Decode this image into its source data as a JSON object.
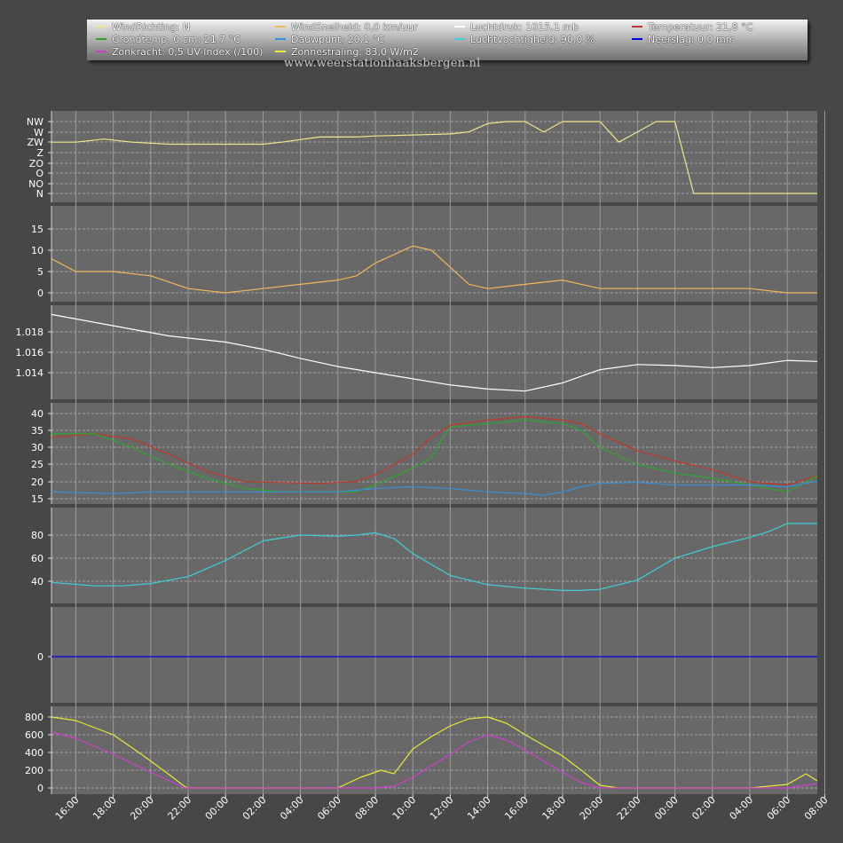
{
  "watermark": "www.weerstationhaaksbergen.nl",
  "legend": [
    {
      "label": "WindRichting: N",
      "color": "#f0e68c"
    },
    {
      "label": "WindSnelheid: 0,0 km/uur",
      "color": "#f4b55c"
    },
    {
      "label": "Luchtdruk: 1015,1 mb",
      "color": "#ffffff"
    },
    {
      "label": "Temperatuur: 21,8 °C",
      "color": "#c0392b"
    },
    {
      "label": "Grondtemp. 0 cm: 21,7 °C",
      "color": "#2ea52e"
    },
    {
      "label": "Dauwpunt: 20,1 °C",
      "color": "#3a8fd8"
    },
    {
      "label": "Luchtvochtigheid: 90,0 %",
      "color": "#3fd0d8"
    },
    {
      "label": "Neerslag: 0,0 mm",
      "color": "#0000e0"
    },
    {
      "label": "Zonkracht: 0,5 UV-Index (/100)",
      "color": "#d040d0"
    },
    {
      "label": "Zonnestraling: 83,0 W/m2",
      "color": "#e8e83a"
    }
  ],
  "chart_data": {
    "type": "line",
    "x_labels": [
      "16:00",
      "18:00",
      "20:00",
      "22:00",
      "00:00",
      "02:00",
      "04:00",
      "06:00",
      "08:00",
      "10:00",
      "12:00",
      "14:00",
      "16:00",
      "18:00",
      "20:00",
      "22:00",
      "00:00",
      "02:00",
      "04:00",
      "06:00",
      "08:00"
    ],
    "x_range_hours": [
      -1.3,
      39.6
    ],
    "panels": [
      {
        "name": "wind-direction",
        "y_tick_labels": [
          "NW",
          "W",
          "ZW",
          "Z",
          "ZO",
          "O",
          "NO",
          "N"
        ],
        "series": [
          {
            "legend_index": 0,
            "color": "#f0e68c",
            "x": [
              -1.3,
              0,
              1.5,
              3,
              5,
              6,
              8,
              10,
              11,
              13,
              15,
              16,
              18,
              20,
              21,
              22,
              23,
              24,
              25,
              26,
              27,
              28,
              29,
              30,
              31,
              32,
              33,
              34,
              35,
              36,
              37,
              38,
              39.6
            ],
            "values": [
              5,
              5,
              5.3,
              5,
              4.8,
              4.8,
              4.8,
              4.8,
              5,
              5.5,
              5.5,
              5.6,
              5.7,
              5.8,
              6,
              6.8,
              7,
              7,
              6,
              7,
              7,
              7,
              5,
              6,
              7,
              7,
              0,
              0,
              0,
              0,
              0,
              0,
              0
            ]
          }
        ]
      },
      {
        "name": "wind-speed",
        "y_tick_labels": [
          "15",
          "10",
          "5",
          "0"
        ],
        "series": [
          {
            "legend_index": 1,
            "color": "#f4b55c",
            "x": [
              -1.3,
              0,
              2,
              4,
              6,
              8,
              10,
              12,
              14,
              15,
              16,
              17,
              18,
              19,
              20,
              21,
              22,
              24,
              26,
              28,
              30,
              32,
              34,
              36,
              38,
              39.6
            ],
            "values": [
              8,
              5,
              5,
              4,
              1,
              0,
              1,
              2,
              3,
              4,
              7,
              9,
              11,
              10,
              6,
              2,
              1,
              2,
              3,
              1,
              1,
              1,
              1,
              1,
              0,
              0
            ]
          }
        ]
      },
      {
        "name": "pressure",
        "y_tick_labels": [
          "1.018",
          "1.016",
          "1.014"
        ],
        "series": [
          {
            "legend_index": 2,
            "color": "#ffffff",
            "x": [
              -1.3,
              2,
              5,
              8,
              10,
              12,
              14,
              16,
              18,
              20,
              22,
              24,
              26,
              28,
              30,
              32,
              34,
              36,
              38,
              39.6
            ],
            "values": [
              1019.7,
              1018.6,
              1017.6,
              1017.0,
              1016.3,
              1015.4,
              1014.6,
              1014.0,
              1013.4,
              1012.8,
              1012.4,
              1012.2,
              1013.0,
              1014.3,
              1014.8,
              1014.7,
              1014.5,
              1014.7,
              1015.2,
              1015.1
            ]
          }
        ]
      },
      {
        "name": "temperatures",
        "y_tick_labels": [
          "40",
          "35",
          "30",
          "25",
          "20",
          "15"
        ],
        "series": [
          {
            "legend_index": 3,
            "color": "#c0392b",
            "x": [
              -1.3,
              1,
              3,
              5,
              7,
              9,
              11,
              13,
              15,
              16,
              18,
              19,
              20,
              22,
              24,
              26,
              27,
              28,
              30,
              32,
              34,
              36,
              38,
              39.6
            ],
            "values": [
              33,
              34,
              32.5,
              28,
              23,
              20,
              19.7,
              19.5,
              20,
              22,
              28,
              33,
              36.5,
              38,
              39,
              38,
              37,
              34,
              29,
              26,
              23.5,
              20,
              19,
              21.8
            ]
          },
          {
            "legend_index": 4,
            "color": "#2ea52e",
            "x": [
              -1.3,
              1,
              3,
              5,
              7,
              9,
              11,
              13,
              15,
              16,
              18,
              19,
              19.5,
              20,
              22,
              24,
              26,
              27,
              28,
              30,
              32,
              34,
              36,
              38,
              39.6
            ],
            "values": [
              34,
              34,
              30,
              25,
              21,
              18,
              17,
              17,
              17,
              19,
              24,
              27,
              32,
              36,
              37,
              38,
              37,
              35,
              30,
              25,
              22.5,
              21,
              19,
              17,
              21.7
            ]
          },
          {
            "legend_index": 5,
            "color": "#3a8fd8",
            "x": [
              -1.3,
              2,
              4,
              6,
              8,
              10,
              12,
              14,
              16,
              18,
              20,
              22,
              24,
              25,
              26,
              27,
              28,
              30,
              32,
              34,
              36,
              38,
              39.6
            ],
            "values": [
              17,
              16.5,
              17,
              17,
              17,
              17,
              17,
              17,
              18,
              18.5,
              18,
              17,
              16.5,
              16,
              17,
              18.5,
              19.5,
              19.8,
              19,
              19,
              19,
              18.5,
              20.1
            ]
          }
        ]
      },
      {
        "name": "humidity",
        "y_tick_labels": [
          "80",
          "60",
          "40"
        ],
        "series": [
          {
            "legend_index": 6,
            "color": "#3fd0d8",
            "x": [
              -1.3,
              1,
              2.5,
              4,
              6,
              8,
              10,
              12,
              14,
              15,
              16,
              17,
              18,
              20,
              22,
              24,
              26,
              27,
              28,
              30,
              32,
              34,
              36,
              37,
              38,
              39.6
            ],
            "values": [
              39,
              36,
              36,
              38,
              44,
              58,
              75,
              80,
              79,
              80,
              82,
              77,
              64,
              45,
              37,
              34,
              32,
              32,
              33,
              41,
              60,
              70,
              78,
              83,
              90,
              90
            ]
          }
        ]
      },
      {
        "name": "precipitation",
        "y_tick_labels": [
          "0"
        ],
        "series": [
          {
            "legend_index": 7,
            "color": "#0000e0",
            "x": [
              -1.3,
              39.6
            ],
            "values": [
              0,
              0
            ]
          }
        ]
      },
      {
        "name": "radiation",
        "y_tick_labels": [
          "800",
          "600",
          "400",
          "200",
          "0"
        ],
        "series": [
          {
            "legend_index": 9,
            "color": "#e8e83a",
            "x": [
              -1.3,
              0,
              2,
              3.5,
              4.8,
              5.8,
              6,
              8,
              10,
              12,
              14,
              15.2,
              16.3,
              17,
              18,
              19,
              20,
              21,
              22,
              23,
              24,
              25,
              26,
              27,
              28,
              29,
              30,
              32,
              34,
              36,
              38,
              39,
              39.6
            ],
            "values": [
              800,
              760,
              600,
              380,
              180,
              20,
              0,
              0,
              0,
              0,
              0,
              120,
              200,
              160,
              440,
              580,
              700,
              780,
              800,
              730,
              600,
              480,
              360,
              200,
              30,
              0,
              0,
              0,
              0,
              0,
              40,
              160,
              80
            ]
          },
          {
            "legend_index": 8,
            "color": "#d040d0",
            "x": [
              -1.3,
              0,
              2,
              3.5,
              4.8,
              5.8,
              8,
              12,
              14,
              16,
              17,
              18,
              19,
              20,
              21,
              22,
              23,
              24,
              25,
              26,
              27,
              28,
              29,
              32,
              36,
              38,
              39.6
            ],
            "values": [
              630,
              560,
              380,
              230,
              100,
              0,
              0,
              0,
              0,
              0,
              20,
              120,
              250,
              380,
              520,
              600,
              540,
              430,
              300,
              180,
              60,
              0,
              0,
              0,
              0,
              0,
              50
            ]
          }
        ]
      }
    ]
  }
}
